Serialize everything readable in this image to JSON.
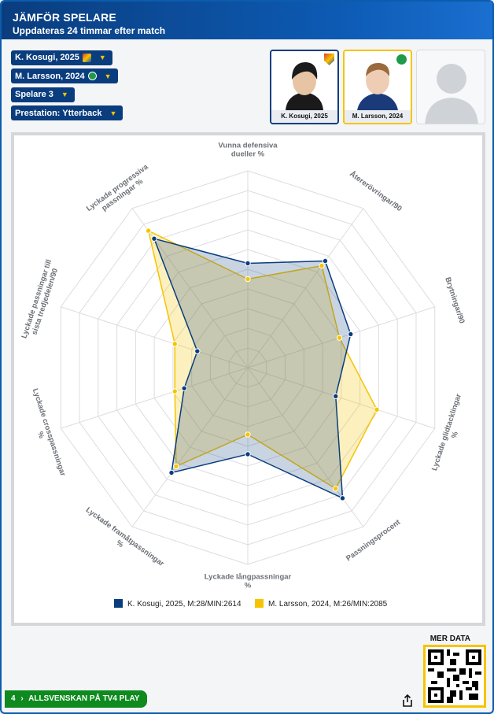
{
  "header": {
    "title": "JÄMFÖR SPELARE",
    "subtitle": "Uppdateras 24 timmar efter match"
  },
  "selectors": {
    "player1": "K. Kosugi, 2025",
    "player2": "M. Larsson, 2024",
    "player3": "Spelare 3",
    "performance": "Prestation: Ytterback"
  },
  "cards": {
    "card1_label": "K. Kosugi, 2025",
    "card2_label": "M. Larsson, 2024"
  },
  "colors": {
    "series1": "#0a3d7e",
    "series2": "#f5c400",
    "header": "#0d5bb5",
    "footer_green": "#0e8a1e"
  },
  "chart_data": {
    "type": "radar",
    "axes": [
      "Vunna defensiva dueller %",
      "Återerövringar/90",
      "Brytningar/90",
      "Lyckade glidtacklingar %",
      "Passningsprocent",
      "Lyckade långpassningar %",
      "Lyckade framåtpassningar %",
      "Lyckade crosspassningar %",
      "Lyckade passningar till sista tredjedelen/90",
      "Lyckade progressiva passningar %"
    ],
    "rlim": [
      0,
      10
    ],
    "series": [
      {
        "name": "K. Kosugi, 2025, M:28/MIN:2614",
        "values": [
          5.3,
          6.7,
          5.5,
          4.7,
          8.2,
          4.4,
          6.6,
          3.4,
          2.7,
          8.1
        ]
      },
      {
        "name": "M. Larsson, 2024, M:26/MIN:2085",
        "values": [
          4.5,
          6.4,
          4.9,
          6.9,
          7.6,
          3.4,
          6.2,
          3.9,
          3.9,
          8.6
        ]
      }
    ],
    "grid": true,
    "legend": "bottom"
  },
  "footer": {
    "label": "ALLSVENSKAN PÅ TV4 PLAY",
    "page": "4",
    "mer_data": "MER DATA"
  }
}
